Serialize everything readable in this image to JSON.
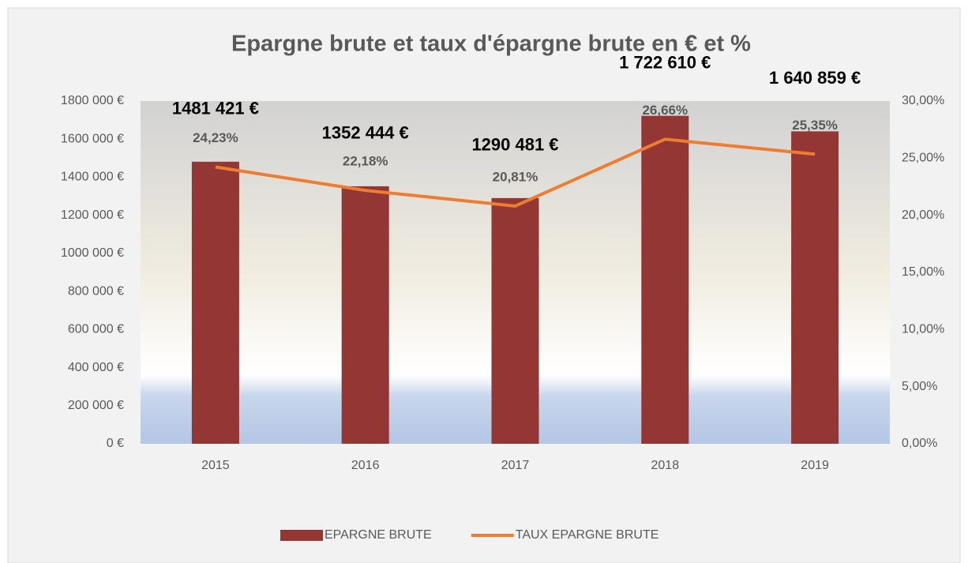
{
  "chart_data": {
    "type": "bar",
    "title": "Epargne brute et taux d'épargne brute en € et %",
    "categories": [
      "2015",
      "2016",
      "2017",
      "2018",
      "2019"
    ],
    "series": [
      {
        "name": "EPARGNE BRUTE",
        "type": "bar",
        "color": "#943634",
        "values": [
          1481421,
          1352444,
          1290481,
          1722610,
          1640859
        ],
        "value_labels": [
          "1481 421 €",
          "1352 444 €",
          "1290 481 €",
          "1 722 610 €",
          "1 640 859 €"
        ]
      },
      {
        "name": "TAUX EPARGNE BRUTE",
        "type": "line",
        "axis": "y2",
        "color": "#ed7d31",
        "values": [
          24.23,
          22.18,
          20.81,
          26.66,
          25.35
        ],
        "value_labels": [
          "24,23%",
          "22,18%",
          "20,81%",
          "26,66%",
          "25,35%"
        ]
      }
    ],
    "ylim": [
      0,
      1800000
    ],
    "yticks": [
      {
        "value": 0,
        "label": "0 €"
      },
      {
        "value": 200000,
        "label": "200 000 €"
      },
      {
        "value": 400000,
        "label": "400 000 €"
      },
      {
        "value": 600000,
        "label": "600 000 €"
      },
      {
        "value": 800000,
        "label": "800 000 €"
      },
      {
        "value": 1000000,
        "label": "1000 000 €"
      },
      {
        "value": 1200000,
        "label": "1200 000 €"
      },
      {
        "value": 1400000,
        "label": "1400 000 €"
      },
      {
        "value": 1600000,
        "label": "1600 000 €"
      },
      {
        "value": 1800000,
        "label": "1800 000 €"
      }
    ],
    "y2lim": [
      0,
      30
    ],
    "y2ticks": [
      {
        "value": 0,
        "label": "0,00%"
      },
      {
        "value": 5,
        "label": "5,00%"
      },
      {
        "value": 10,
        "label": "10,00%"
      },
      {
        "value": 15,
        "label": "15,00%"
      },
      {
        "value": 20,
        "label": "20,00%"
      },
      {
        "value": 25,
        "label": "25,00%"
      },
      {
        "value": 30,
        "label": "30,00%"
      }
    ],
    "legend": "bottom"
  }
}
